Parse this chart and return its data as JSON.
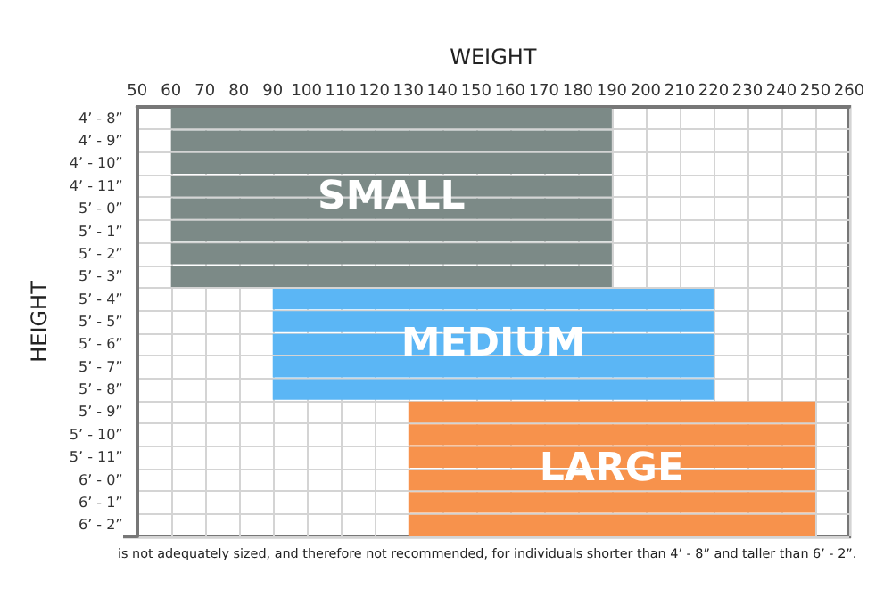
{
  "chart_data": {
    "type": "bar",
    "orientation": "horizontal",
    "xlabel": "WEIGHT",
    "ylabel": "HEIGHT",
    "categories": [
      "4’ - 8”",
      "4’ - 9”",
      "4’ - 10”",
      "4’ - 11”",
      "5’ - 0”",
      "5’ - 1”",
      "5’ - 2”",
      "5’ - 3”",
      "5’ - 4”",
      "5’ - 5”",
      "5’ - 6”",
      "5’ - 7”",
      "5’ - 8”",
      "5’ - 9”",
      "5’ - 10”",
      "5’ - 11”",
      "6’ - 0”",
      "6’ - 1”",
      "6’ - 2”"
    ],
    "series": [
      {
        "name": "SMALL",
        "color": "#7c8a87",
        "base": [
          60,
          60,
          60,
          60,
          60,
          60,
          60,
          60,
          null,
          null,
          null,
          null,
          null,
          null,
          null,
          null,
          null,
          null,
          null
        ],
        "values": [
          130,
          130,
          130,
          130,
          130,
          130,
          130,
          130,
          null,
          null,
          null,
          null,
          null,
          null,
          null,
          null,
          null,
          null,
          null
        ]
      },
      {
        "name": "MEDIUM",
        "color": "#5bb6f5",
        "base": [
          null,
          null,
          null,
          null,
          null,
          null,
          null,
          null,
          90,
          90,
          90,
          90,
          90,
          null,
          null,
          null,
          null,
          null,
          null
        ],
        "values": [
          null,
          null,
          null,
          null,
          null,
          null,
          null,
          null,
          130,
          130,
          130,
          130,
          130,
          null,
          null,
          null,
          null,
          null,
          null
        ]
      },
      {
        "name": "LARGE",
        "color": "#f7924c",
        "base": [
          null,
          null,
          null,
          null,
          null,
          null,
          null,
          null,
          null,
          null,
          null,
          null,
          null,
          130,
          130,
          130,
          130,
          130,
          130
        ],
        "values": [
          null,
          null,
          null,
          null,
          null,
          null,
          null,
          null,
          null,
          null,
          null,
          null,
          null,
          120,
          120,
          120,
          120,
          120,
          120
        ]
      }
    ],
    "xlim": [
      50,
      260
    ],
    "xticks": [
      50,
      60,
      70,
      80,
      90,
      100,
      110,
      120,
      130,
      140,
      150,
      160,
      170,
      180,
      190,
      200,
      210,
      220,
      230,
      240,
      250,
      260
    ],
    "grid": true,
    "legend": false,
    "annotations": [
      "is not adequately sized, and therefore not recommended, for individuals shorter than 4’ - 8” and taller than 6’ - 2”."
    ]
  }
}
